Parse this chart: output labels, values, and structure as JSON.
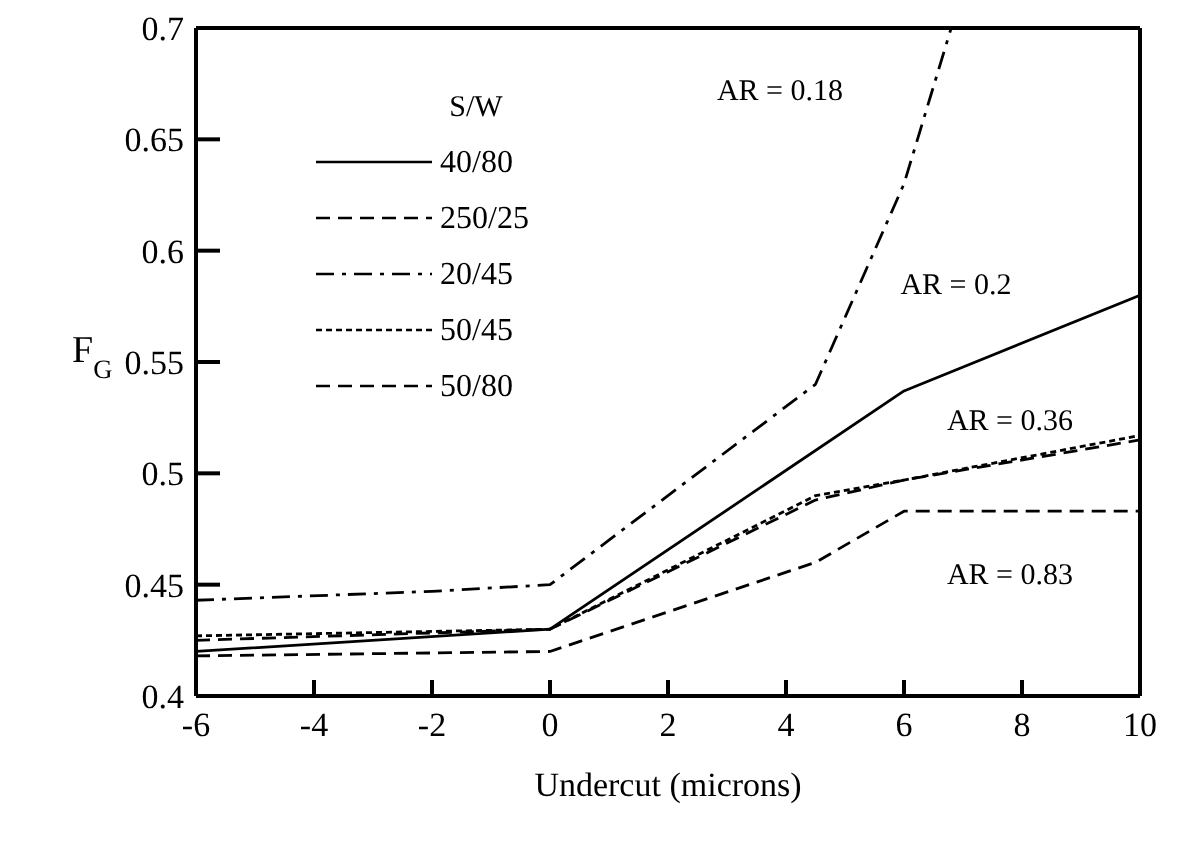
{
  "chart_data": {
    "type": "line",
    "xlabel": "Undercut (microns)",
    "ylabel": "F$_{G}$",
    "legend_title": "S/W",
    "xlim": [
      -6,
      10
    ],
    "xticks": [
      -6,
      -4,
      -2,
      0,
      2,
      4,
      6,
      8,
      10
    ],
    "ylim": [
      0.4,
      0.7
    ],
    "yticks": [
      0.4,
      0.45,
      0.5,
      0.55,
      0.6,
      0.65,
      0.7
    ],
    "grid": false,
    "legend": "top left",
    "marker": "none",
    "series": [
      {
        "name": "40/80",
        "color": "#000000",
        "line_style": "solid",
        "x": [
          -6,
          0,
          6,
          10
        ],
        "values": [
          0.42,
          0.43,
          0.537,
          0.58
        ]
      },
      {
        "name": "250/25",
        "color": "#000000",
        "line_style": "dashed",
        "x": [
          -6,
          0,
          4.5,
          6,
          10
        ],
        "values": [
          0.425,
          0.43,
          0.488,
          0.497,
          0.515
        ]
      },
      {
        "name": "20/45",
        "color": "#000000",
        "line_style": "dashdot",
        "x": [
          -6,
          -2,
          0,
          4.5,
          6,
          6.8
        ],
        "values": [
          0.443,
          0.447,
          0.45,
          0.54,
          0.63,
          0.7
        ]
      },
      {
        "name": "50/45",
        "color": "#000000",
        "line_style": "dotted",
        "x": [
          -6,
          0,
          4.5,
          6,
          10
        ],
        "values": [
          0.427,
          0.43,
          0.49,
          0.497,
          0.517
        ]
      },
      {
        "name": "50/80",
        "color": "#000000",
        "line_style": "dashed",
        "x": [
          -6,
          0,
          4.5,
          6,
          10
        ],
        "values": [
          0.418,
          0.42,
          0.46,
          0.483,
          0.483
        ]
      }
    ],
    "annotations": [
      "AR = 0.18",
      "AR = 0.2",
      "AR = 0.36",
      "AR = 0.83"
    ]
  }
}
